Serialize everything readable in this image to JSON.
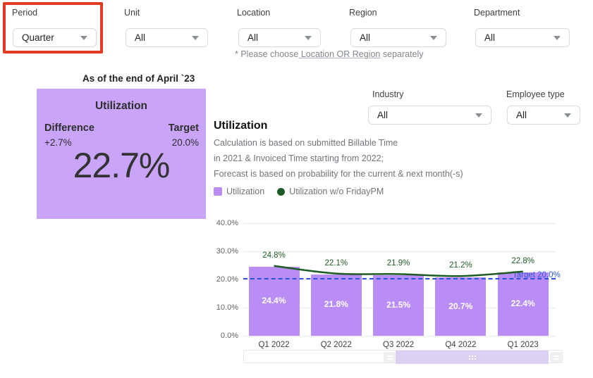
{
  "filters": {
    "period": {
      "label": "Period",
      "value": "Quarter"
    },
    "unit": {
      "label": "Unit",
      "value": "All"
    },
    "location": {
      "label": "Location",
      "value": "All"
    },
    "region": {
      "label": "Region",
      "value": "All"
    },
    "department": {
      "label": "Department",
      "value": "All"
    },
    "industry": {
      "label": "Industry",
      "value": "All"
    },
    "employee_type": {
      "label": "Employee type",
      "value": "All"
    }
  },
  "note": {
    "prefix": "* Please choose",
    "link": " Location OR Region",
    "suffix": " separately"
  },
  "summary_card": {
    "as_of": "As of the end of April `23",
    "title": "Utilization",
    "difference_label": "Difference",
    "difference_value": "+2.7%",
    "target_label": "Target",
    "target_value": "20.0%",
    "value": "22.7%",
    "background": "#C9A4F8"
  },
  "section": {
    "title": "Utilization",
    "description_lines": [
      "Calculation is based on submitted Billable Time",
      "in 2021 & Invoiced Time starting from 2022;",
      "Forecast is based on probability for the current & next month(-s)"
    ]
  },
  "legend": [
    {
      "label": "Utilization",
      "color": "#B98CF6",
      "shape": "square"
    },
    {
      "label": "Utilization w/o FridayPM",
      "color": "#1D5B24",
      "shape": "circle"
    }
  ],
  "chart_data": {
    "type": "bar",
    "categories": [
      "Q1 2022",
      "Q2 2022",
      "Q3 2022",
      "Q4 2022",
      "Q1 2023"
    ],
    "series": [
      {
        "name": "Utilization",
        "type": "bar",
        "color": "#B98CF6",
        "values": [
          24.4,
          21.8,
          21.5,
          20.7,
          22.4
        ]
      },
      {
        "name": "Utilization w/o FridayPM",
        "type": "line",
        "color": "#1D5B24",
        "values": [
          24.8,
          22.1,
          21.9,
          21.2,
          22.8
        ]
      }
    ],
    "target": {
      "label": "Target 20.0%",
      "value": 20.0,
      "color": "#2B55E0"
    },
    "ylim": [
      0,
      40
    ],
    "yticks": [
      0,
      10,
      20,
      30,
      40
    ],
    "ytick_format": "0.0%",
    "grid": true,
    "value_labels": true,
    "legend_position": "top"
  },
  "colors": {
    "highlight_red": "#E23B20",
    "bar_purple": "#B98CF6",
    "card_purple": "#C9A4F8",
    "line_green": "#1D5B24",
    "target_blue": "#2B55E0",
    "scrollbar_thumb": "#DBD0F2"
  }
}
